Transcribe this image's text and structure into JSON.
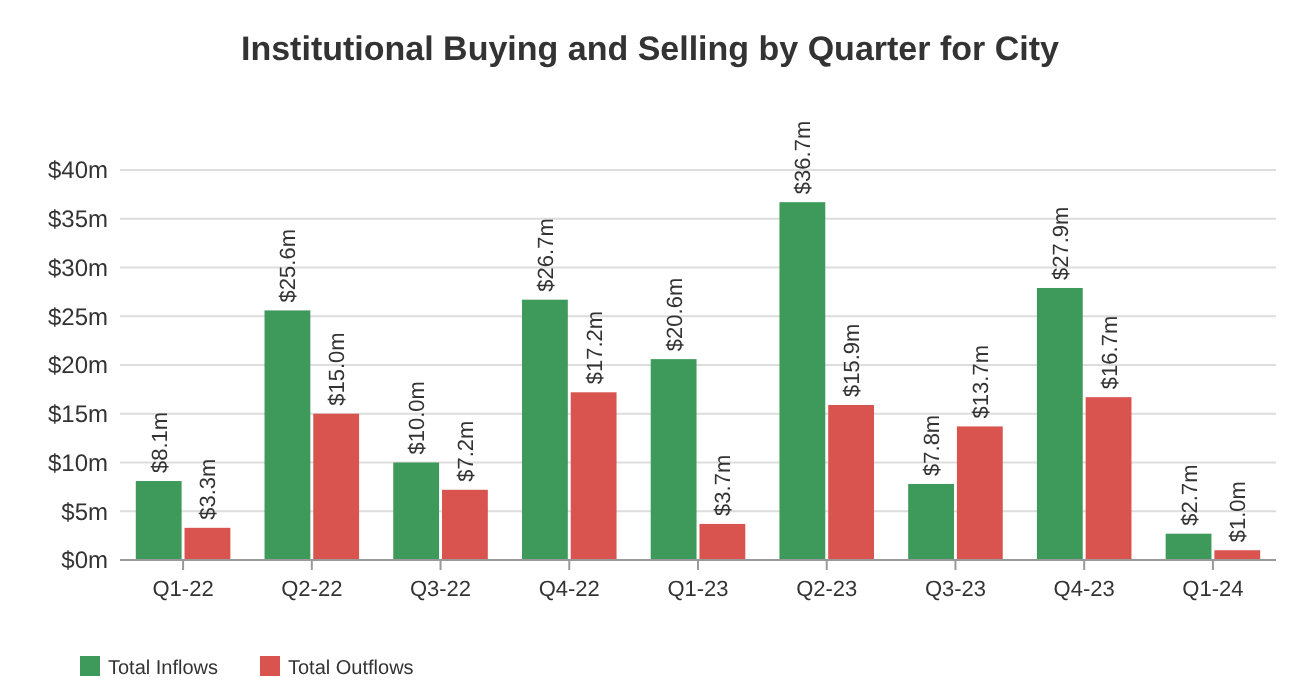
{
  "chart_data": {
    "type": "bar",
    "title": "Institutional Buying and Selling by Quarter for City",
    "categories": [
      "Q1-22",
      "Q2-22",
      "Q3-22",
      "Q4-22",
      "Q1-23",
      "Q2-23",
      "Q3-23",
      "Q4-23",
      "Q1-24"
    ],
    "series": [
      {
        "name": "Total Inflows",
        "color": "#3d9a5b",
        "values": [
          8.1,
          25.6,
          10.0,
          26.7,
          20.6,
          36.7,
          7.8,
          27.9,
          2.7
        ],
        "value_labels": [
          "$8.1m",
          "$25.6m",
          "$10.0m",
          "$26.7m",
          "$20.6m",
          "$36.7m",
          "$7.8m",
          "$27.9m",
          "$2.7m"
        ]
      },
      {
        "name": "Total Outflows",
        "color": "#d9534f",
        "values": [
          3.3,
          15.0,
          7.2,
          17.2,
          3.7,
          15.9,
          13.7,
          16.7,
          1.0
        ],
        "value_labels": [
          "$3.3m",
          "$15.0m",
          "$7.2m",
          "$17.2m",
          "$3.7m",
          "$15.9m",
          "$13.7m",
          "$16.7m",
          "$1.0m"
        ]
      }
    ],
    "ylim": [
      0,
      40
    ],
    "yticks": [
      {
        "value": 0,
        "label": "$0m"
      },
      {
        "value": 5,
        "label": "$5m"
      },
      {
        "value": 10,
        "label": "$10m"
      },
      {
        "value": 15,
        "label": "$15m"
      },
      {
        "value": 20,
        "label": "$20m"
      },
      {
        "value": 25,
        "label": "$25m"
      },
      {
        "value": 30,
        "label": "$30m"
      },
      {
        "value": 35,
        "label": "$35m"
      },
      {
        "value": 40,
        "label": "$40m"
      }
    ],
    "grid": "y",
    "legend": "bottom left"
  }
}
